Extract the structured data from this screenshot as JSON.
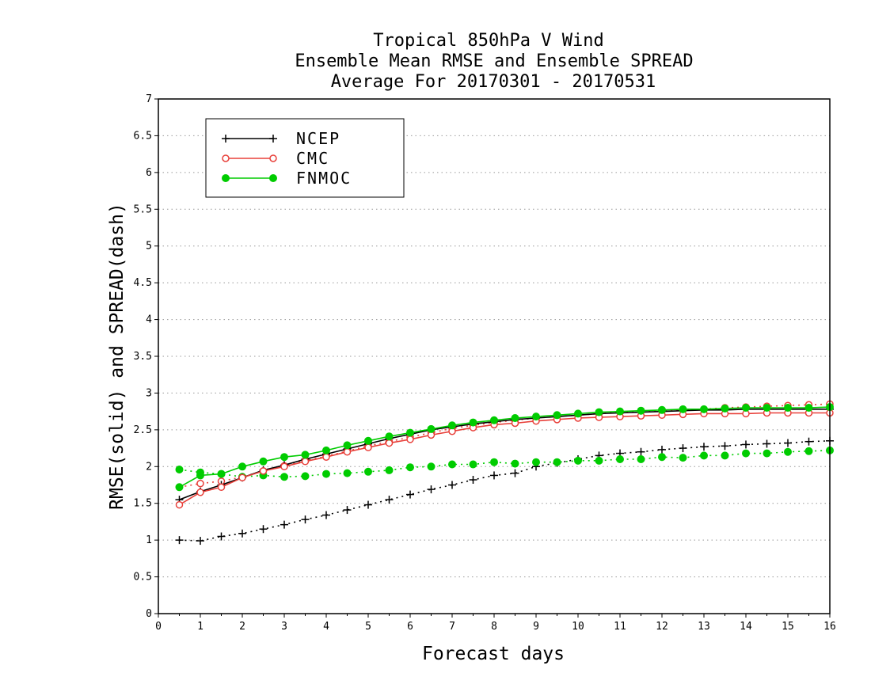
{
  "chart_data": {
    "type": "line",
    "title": [
      "Tropical 850hPa V Wind",
      "Ensemble Mean RMSE and Ensemble SPREAD",
      "Average For 20170301 - 20170531"
    ],
    "xlabel": "Forecast days",
    "ylabel": "RMSE(solid) and SPREAD(dash)",
    "xlim": [
      0,
      16
    ],
    "ylim": [
      0,
      7
    ],
    "xticks": [
      "0",
      "1",
      "2",
      "3",
      "4",
      "5",
      "6",
      "7",
      "8",
      "9",
      "10",
      "11",
      "12",
      "13",
      "14",
      "15",
      "16"
    ],
    "yticks": [
      "0",
      "0.5",
      "1",
      "1.5",
      "2",
      "2.5",
      "3",
      "3.5",
      "4",
      "4.5",
      "5",
      "5.5",
      "6",
      "6.5",
      "7"
    ],
    "grid": "horizontal dotted",
    "legend_position": "top-left",
    "x": [
      0.5,
      1,
      1.5,
      2,
      2.5,
      3,
      3.5,
      4,
      4.5,
      5,
      5.5,
      6,
      6.5,
      7,
      7.5,
      8,
      8.5,
      9,
      9.5,
      10,
      10.5,
      11,
      11.5,
      12,
      12.5,
      13,
      13.5,
      14,
      14.5,
      15,
      15.5,
      16
    ],
    "series": [
      {
        "name": "NCEP",
        "color": "#000000",
        "marker": "plus",
        "rmse": [
          1.55,
          1.66,
          1.75,
          1.85,
          1.95,
          2.02,
          2.1,
          2.17,
          2.24,
          2.31,
          2.38,
          2.44,
          2.5,
          2.54,
          2.58,
          2.61,
          2.64,
          2.66,
          2.68,
          2.7,
          2.72,
          2.73,
          2.74,
          2.75,
          2.76,
          2.77,
          2.77,
          2.78,
          2.78,
          2.78,
          2.78,
          2.78
        ],
        "spread": [
          1.0,
          0.99,
          1.05,
          1.09,
          1.15,
          1.21,
          1.28,
          1.34,
          1.41,
          1.48,
          1.55,
          1.62,
          1.69,
          1.75,
          1.82,
          1.88,
          1.91,
          2.0,
          2.05,
          2.1,
          2.15,
          2.18,
          2.2,
          2.23,
          2.25,
          2.27,
          2.28,
          2.3,
          2.31,
          2.32,
          2.34,
          2.35
        ]
      },
      {
        "name": "CMC",
        "color": "#e8403a",
        "marker": "open-circle",
        "rmse": [
          1.48,
          1.65,
          1.72,
          1.85,
          1.94,
          2.0,
          2.07,
          2.13,
          2.2,
          2.26,
          2.32,
          2.37,
          2.43,
          2.48,
          2.53,
          2.57,
          2.59,
          2.62,
          2.64,
          2.66,
          2.67,
          2.68,
          2.69,
          2.7,
          2.71,
          2.72,
          2.72,
          2.72,
          2.73,
          2.73,
          2.73,
          2.73
        ],
        "spread": [
          1.72,
          1.77,
          1.8,
          1.86,
          1.94,
          2.01,
          2.08,
          2.14,
          2.21,
          2.28,
          2.34,
          2.4,
          2.46,
          2.52,
          2.56,
          2.6,
          2.63,
          2.66,
          2.68,
          2.7,
          2.72,
          2.74,
          2.75,
          2.76,
          2.77,
          2.78,
          2.8,
          2.81,
          2.82,
          2.83,
          2.84,
          2.85
        ]
      },
      {
        "name": "FNMOC",
        "color": "#00cc00",
        "marker": "filled-circle",
        "rmse": [
          1.72,
          1.88,
          1.9,
          2.0,
          2.07,
          2.13,
          2.16,
          2.22,
          2.29,
          2.35,
          2.41,
          2.46,
          2.51,
          2.56,
          2.6,
          2.63,
          2.66,
          2.68,
          2.7,
          2.72,
          2.74,
          2.75,
          2.76,
          2.77,
          2.78,
          2.78,
          2.79,
          2.8,
          2.8,
          2.8,
          2.8,
          2.81
        ],
        "spread": [
          1.96,
          1.92,
          1.9,
          1.86,
          1.88,
          1.86,
          1.87,
          1.9,
          1.91,
          1.93,
          1.95,
          1.99,
          2.0,
          2.03,
          2.03,
          2.06,
          2.04,
          2.06,
          2.06,
          2.08,
          2.08,
          2.1,
          2.1,
          2.13,
          2.12,
          2.15,
          2.15,
          2.18,
          2.18,
          2.2,
          2.21,
          2.22
        ]
      }
    ]
  }
}
